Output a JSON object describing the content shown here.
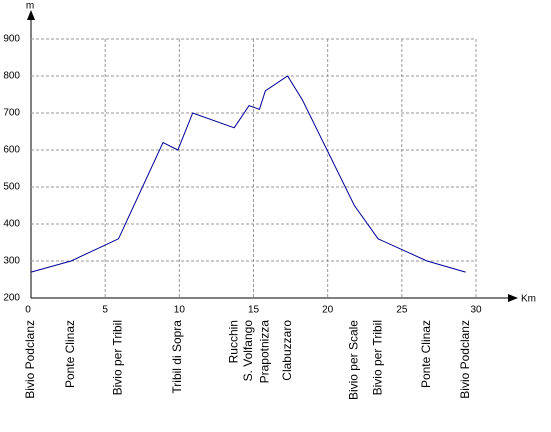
{
  "chart_data": {
    "type": "line",
    "y_label": "m",
    "x_label": "Km",
    "x": [
      0,
      2.7,
      5.9,
      8.9,
      9.9,
      10.9,
      13.7,
      14.7,
      15.4,
      15.8,
      17.3,
      18.3,
      21.8,
      23.4,
      26.7,
      29.3
    ],
    "series": [
      {
        "color": "#000099",
        "values": [
          270,
          300,
          360,
          620,
          600,
          700,
          660,
          720,
          710,
          760,
          800,
          735,
          450,
          360,
          300,
          270
        ]
      }
    ],
    "xlim": [
      0,
      30
    ],
    "xticks": [
      0,
      5,
      10,
      15,
      20,
      25,
      30
    ],
    "ylim": [
      200,
      900
    ],
    "yticks": [
      200,
      300,
      400,
      500,
      600,
      700,
      800,
      900
    ],
    "grid": true,
    "places": [
      {
        "name": "Bivio Podclanz",
        "x": 0
      },
      {
        "name": "Ponte Clinaz",
        "x": 2.7
      },
      {
        "name": "Bivio per Tribil",
        "x": 5.9
      },
      {
        "name": "Tribil di Sopra",
        "x": 9.9
      },
      {
        "name": "Rucchin",
        "x": 13.7
      },
      {
        "name": "S. Volfango",
        "x": 14.7
      },
      {
        "name": "Prapotnizza",
        "x": 15.8
      },
      {
        "name": "Clabuzzaro",
        "x": 17.3
      },
      {
        "name": "Bivio per Scale",
        "x": 21.8
      },
      {
        "name": "Bivio per Tribil",
        "x": 23.4
      },
      {
        "name": "Ponte Clinaz",
        "x": 26.7
      },
      {
        "name": "Bivio Podclanz",
        "x": 29.3
      }
    ]
  }
}
